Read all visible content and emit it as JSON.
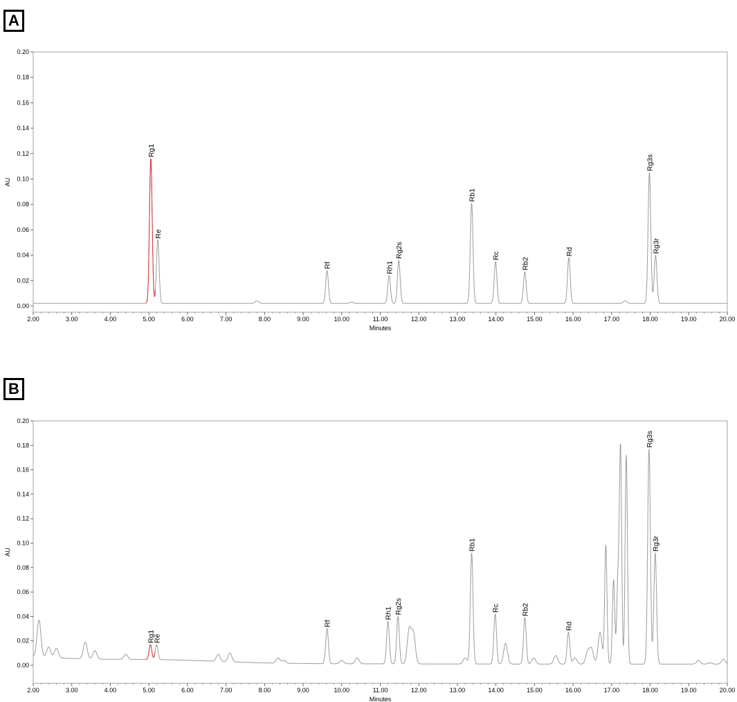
{
  "panels": {
    "a": {
      "letter": "A"
    },
    "b": {
      "letter": "B"
    }
  },
  "colors": {
    "trace": "#9b9b9b",
    "highlight": "#e03030",
    "frame": "#a0a0a0",
    "text": "#000000"
  },
  "chart_data": [
    {
      "type": "line",
      "panel": "A",
      "xlabel": "Minutes",
      "ylabel": "AU",
      "xlim": [
        2.0,
        20.0
      ],
      "ylim": [
        -0.005,
        0.2
      ],
      "x_ticks": [
        "2.00",
        "3.00",
        "4.00",
        "5.00",
        "6.00",
        "7.00",
        "8.00",
        "9.00",
        "10.00",
        "11.00",
        "12.00",
        "13.00",
        "14.00",
        "15.00",
        "16.00",
        "17.00",
        "18.00",
        "19.00",
        "20.00"
      ],
      "y_ticks": [
        "0.00",
        "0.02",
        "0.04",
        "0.06",
        "0.08",
        "0.10",
        "0.12",
        "0.14",
        "0.16",
        "0.18",
        "0.20"
      ],
      "baseline": 0.002,
      "peaks": [
        {
          "label": "Rg1",
          "x": 5.05,
          "y": 0.116,
          "highlight": true
        },
        {
          "label": "Re",
          "x": 5.23,
          "y": 0.052
        },
        {
          "label": "Rf",
          "x": 9.62,
          "y": 0.028
        },
        {
          "label": "Rh1",
          "x": 11.23,
          "y": 0.024
        },
        {
          "label": "Rg2s",
          "x": 11.48,
          "y": 0.036
        },
        {
          "label": "Rb1",
          "x": 13.37,
          "y": 0.081
        },
        {
          "label": "Rc",
          "x": 13.99,
          "y": 0.035
        },
        {
          "label": "Rb2",
          "x": 14.75,
          "y": 0.027
        },
        {
          "label": "Rd",
          "x": 15.89,
          "y": 0.038
        },
        {
          "label": "Rg3s",
          "x": 17.98,
          "y": 0.105
        },
        {
          "label": "Rg3r",
          "x": 18.14,
          "y": 0.04
        }
      ],
      "minor_peaks": [
        {
          "x": 7.8,
          "y": 0.004
        },
        {
          "x": 10.25,
          "y": 0.003
        },
        {
          "x": 17.35,
          "y": 0.004
        }
      ]
    },
    {
      "type": "line",
      "panel": "B",
      "xlabel": "Minutes",
      "ylabel": "AU",
      "xlim": [
        2.0,
        20.0
      ],
      "ylim": [
        -0.015,
        0.2
      ],
      "x_ticks": [
        "2.00",
        "3.00",
        "4.00",
        "5.00",
        "6.00",
        "7.00",
        "8.00",
        "9.00",
        "10.00",
        "11.00",
        "12.00",
        "13.00",
        "14.00",
        "15.00",
        "16.00",
        "17.00",
        "18.00",
        "19.00",
        "20.00"
      ],
      "y_ticks": [
        "0.00",
        "0.02",
        "0.04",
        "0.06",
        "0.08",
        "0.10",
        "0.12",
        "0.14",
        "0.16",
        "0.18",
        "0.20"
      ],
      "peaks": [
        {
          "label": "Rg1",
          "x": 5.04,
          "y": 0.017,
          "highlight": true
        },
        {
          "label": "Re",
          "x": 5.2,
          "y": 0.017
        },
        {
          "label": "Rf",
          "x": 9.62,
          "y": 0.03
        },
        {
          "label": "Rh1",
          "x": 11.2,
          "y": 0.036
        },
        {
          "label": "Rg2s",
          "x": 11.46,
          "y": 0.04
        },
        {
          "label": "Rb1",
          "x": 13.37,
          "y": 0.092
        },
        {
          "label": "Rc",
          "x": 13.98,
          "y": 0.042
        },
        {
          "label": "Rb2",
          "x": 14.75,
          "y": 0.039
        },
        {
          "label": "Rd",
          "x": 15.88,
          "y": 0.027
        },
        {
          "label": "Rg3s",
          "x": 17.97,
          "y": 0.177
        },
        {
          "label": "Rg3r",
          "x": 18.13,
          "y": 0.092
        }
      ],
      "minor_peaks": [
        {
          "x": 2.15,
          "y": 0.037
        },
        {
          "x": 2.4,
          "y": 0.015
        },
        {
          "x": 2.6,
          "y": 0.014
        },
        {
          "x": 3.35,
          "y": 0.019
        },
        {
          "x": 3.6,
          "y": 0.012
        },
        {
          "x": 4.4,
          "y": 0.009
        },
        {
          "x": 6.8,
          "y": 0.009
        },
        {
          "x": 7.1,
          "y": 0.01
        },
        {
          "x": 8.35,
          "y": 0.006
        },
        {
          "x": 8.5,
          "y": 0.004
        },
        {
          "x": 10.0,
          "y": 0.004
        },
        {
          "x": 10.4,
          "y": 0.006
        },
        {
          "x": 11.75,
          "y": 0.029
        },
        {
          "x": 11.86,
          "y": 0.026
        },
        {
          "x": 13.2,
          "y": 0.006
        },
        {
          "x": 14.25,
          "y": 0.018
        },
        {
          "x": 14.98,
          "y": 0.006
        },
        {
          "x": 15.55,
          "y": 0.008
        },
        {
          "x": 16.05,
          "y": 0.006
        },
        {
          "x": 16.38,
          "y": 0.011
        },
        {
          "x": 16.48,
          "y": 0.013
        },
        {
          "x": 16.7,
          "y": 0.027
        },
        {
          "x": 16.85,
          "y": 0.098
        },
        {
          "x": 17.05,
          "y": 0.07
        },
        {
          "x": 17.16,
          "y": 0.065
        },
        {
          "x": 17.23,
          "y": 0.177
        },
        {
          "x": 17.38,
          "y": 0.172
        },
        {
          "x": 19.25,
          "y": 0.004
        },
        {
          "x": 19.55,
          "y": 0.002
        },
        {
          "x": 19.9,
          "y": 0.005
        }
      ]
    }
  ]
}
